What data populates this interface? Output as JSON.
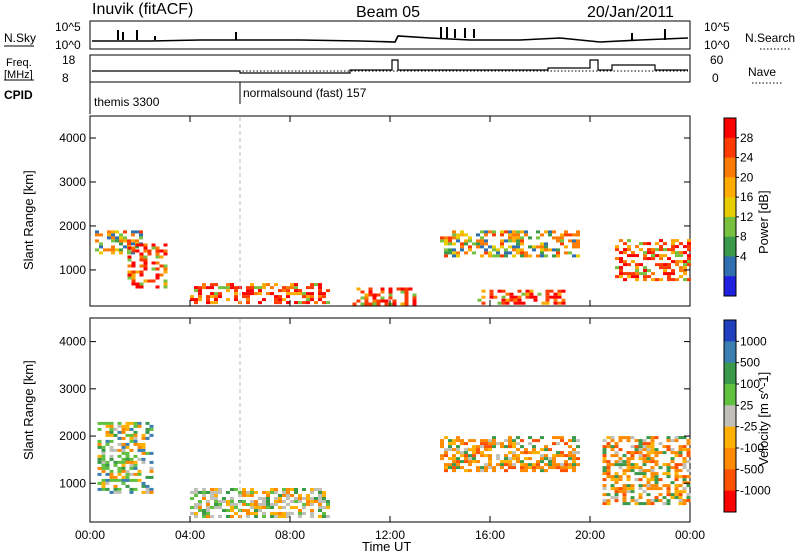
{
  "header": {
    "station": "Inuvik (fitACF)",
    "beam": "Beam 05",
    "date": "20/Jan/2011"
  },
  "top_panel": {
    "nsky_label": "N.Sky",
    "nsearch_label": "N.Search",
    "freq_label_1": "Freq.",
    "freq_label_2": "[MHz]",
    "nave_label": "Nave",
    "cpid_label": "CPID",
    "left_ticks_top": [
      "10^5",
      "10^0"
    ],
    "right_ticks_top": [
      "10^5",
      "10^0"
    ],
    "left_ticks_freq": [
      "18",
      "8"
    ],
    "right_ticks_nave": [
      "60",
      "0"
    ],
    "cpid_segments": [
      {
        "label": "themis 3300",
        "start_h": 0,
        "end_h": 6
      },
      {
        "label": "normalsound (fast) 157",
        "start_h": 6,
        "end_h": 24
      }
    ]
  },
  "chart_data": [
    {
      "type": "heatmap",
      "title": "",
      "xlabel": "",
      "ylabel": "Slant Range [km]",
      "xlim": [
        0,
        24
      ],
      "ylim": [
        180,
        4500
      ],
      "xticks": [
        "00:00",
        "04:00",
        "08:00",
        "12:00",
        "16:00",
        "20:00",
        "00:00"
      ],
      "yticks": [
        1000,
        2000,
        3000,
        4000
      ],
      "colorbar": {
        "label": "Power [dB]",
        "ticks": [
          "28",
          "24",
          "20",
          "16",
          "12",
          "8",
          "4"
        ],
        "colors": [
          "#ff0000",
          "#ff3a00",
          "#ff7a00",
          "#ffaa00",
          "#e6cc00",
          "#78c040",
          "#3a9a4a",
          "#2f6fb0",
          "#2020e0"
        ]
      },
      "regions": [
        {
          "x": [
            0.2,
            2.0
          ],
          "y": [
            1400,
            1900
          ],
          "level": "mid-high"
        },
        {
          "x": [
            1.5,
            3.0
          ],
          "y": [
            600,
            1600
          ],
          "level": "high"
        },
        {
          "x": [
            4.0,
            9.5
          ],
          "y": [
            250,
            700
          ],
          "level": "high"
        },
        {
          "x": [
            10.5,
            13.0
          ],
          "y": [
            250,
            600
          ],
          "level": "high"
        },
        {
          "x": [
            14.0,
            19.5
          ],
          "y": [
            1300,
            1900
          ],
          "level": "mid-high"
        },
        {
          "x": [
            15.5,
            19.0
          ],
          "y": [
            250,
            550
          ],
          "level": "high"
        },
        {
          "x": [
            21.0,
            24.0
          ],
          "y": [
            800,
            1700
          ],
          "level": "high"
        }
      ]
    },
    {
      "type": "heatmap",
      "title": "",
      "xlabel": "Time UT",
      "ylabel": "Slant Range [km]",
      "xlim": [
        0,
        24
      ],
      "ylim": [
        180,
        4500
      ],
      "xticks": [
        "00:00",
        "04:00",
        "08:00",
        "12:00",
        "16:00",
        "20:00",
        "00:00"
      ],
      "yticks": [
        1000,
        2000,
        3000,
        4000
      ],
      "colorbar": {
        "label": "Velocity [m s^-1]",
        "ticks": [
          "1000",
          "500",
          "100",
          "25",
          "-25",
          "-100",
          "-500",
          "-1000"
        ],
        "colors": [
          "#2040c0",
          "#3a7fb0",
          "#3a9a4a",
          "#60c040",
          "#c0c0b8",
          "#ffb000",
          "#ff8a00",
          "#ff5000",
          "#ff0000"
        ]
      },
      "regions": [
        {
          "x": [
            0.3,
            2.5
          ],
          "y": [
            800,
            2300
          ],
          "level": "positive/low"
        },
        {
          "x": [
            4.0,
            9.5
          ],
          "y": [
            300,
            900
          ],
          "level": "low/grey"
        },
        {
          "x": [
            14.0,
            19.5
          ],
          "y": [
            1300,
            2000
          ],
          "level": "negative"
        },
        {
          "x": [
            20.5,
            24.0
          ],
          "y": [
            600,
            2000
          ],
          "level": "negative"
        }
      ]
    }
  ]
}
